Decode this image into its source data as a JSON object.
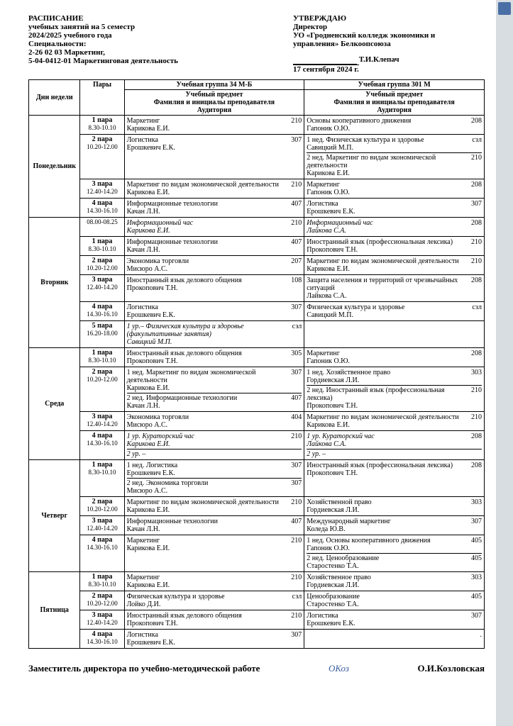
{
  "header": {
    "left": {
      "title": "РАСПИСАНИЕ",
      "line1": "учебных занятий на 5 семестр",
      "line2": "2024/2025 учебного года",
      "line3": "Специальности:",
      "line4": "2-26 02 03  Маркетинг,",
      "line5": "5-04-0412-01 Маркетинговая деятельность"
    },
    "right": {
      "approve": "УТВЕРЖДАЮ",
      "director": "Директор",
      "org1": "УО «Гродненский колледж экономики и",
      "org2": "управления» Белкоопсоюза",
      "name": "Т.И.Клепач",
      "date": "17 сентября 2024 г."
    }
  },
  "table_headers": {
    "day": "Дни недели",
    "pair": "Пары",
    "group1": "Учебная группа 34 М-Б",
    "group2": "Учебная группа 301 М",
    "sub": "Учебный предмет\nФамилия и инициалы преподавателя\nАудитория"
  },
  "days": [
    {
      "name": "Понедельник",
      "rows": [
        {
          "pair": "1 пара",
          "time": "8.30-10.10",
          "g1": [
            {
              "s": "Маркетинг",
              "t": "Карикова Е.И.",
              "r": "210"
            }
          ],
          "g2": [
            {
              "s": "Основы кооперативного движения",
              "t": "Гапоник О.Ю.",
              "r": "208"
            }
          ]
        },
        {
          "pair": "2 пара",
          "time": "10.20-12.00",
          "g1": [
            {
              "s": "Логистика",
              "t": "Ерошкевич Е.К.",
              "r": "307"
            }
          ],
          "g2": [
            {
              "s": "1 нед. Физическая культура и здоровье",
              "t": "Савицкий М.П.",
              "r": "сзл"
            },
            {
              "s": "2 нед. Маркетинг по видам экономической деятельности",
              "t": "Карикова Е.И.",
              "r": "210"
            }
          ]
        },
        {
          "pair": "3 пара",
          "time": "12.40-14.20",
          "g1": [
            {
              "s": "Маркетинг по видам экономической деятельности",
              "t": "Карикова Е.И.",
              "r": "210"
            }
          ],
          "g2": [
            {
              "s": "Маркетинг",
              "t": "Гапоник О.Ю.",
              "r": "208"
            }
          ]
        },
        {
          "pair": "4 пара",
          "time": "14.30-16.10",
          "g1": [
            {
              "s": "Информационные технологии",
              "t": "Качан Л.Н.",
              "r": "407"
            }
          ],
          "g2": [
            {
              "s": "Логистика",
              "t": "Ерошкевич Е.К.",
              "r": "307"
            }
          ]
        }
      ]
    },
    {
      "name": "Вторник",
      "rows": [
        {
          "pair": "",
          "time": "08.00-08.25",
          "g1": [
            {
              "s": "Информационный час",
              "t": "Карикова Е.И.",
              "r": "210",
              "it": true
            }
          ],
          "g2": [
            {
              "s": "Информационный час",
              "t": "Лайкова С.А.",
              "r": "208",
              "it": true
            }
          ]
        },
        {
          "pair": "1 пара",
          "time": "8.30-10.10",
          "g1": [
            {
              "s": "Информационные технологии",
              "t": "Качан Л.Н.",
              "r": "407"
            }
          ],
          "g2": [
            {
              "s": "Иностранный язык (профессиональная лексика)",
              "t": "Прокопович Т.Н.",
              "r": "210"
            }
          ]
        },
        {
          "pair": "2 пара",
          "time": "10.20-12.00",
          "g1": [
            {
              "s": "Экономика торговли",
              "t": "Мисюро А.С.",
              "r": "207"
            }
          ],
          "g2": [
            {
              "s": "Маркетинг по видам экономической деятельности",
              "t": "Карикова Е.И.",
              "r": "210"
            }
          ]
        },
        {
          "pair": "3 пара",
          "time": "12.40-14.20",
          "g1": [
            {
              "s": "Иностранный язык делового общения",
              "t": "Прокопович Т.Н.",
              "r": "108"
            }
          ],
          "g2": [
            {
              "s": "Защита населения и территорий от чрезвычайных ситуаций",
              "t": "Лайкова С.А.",
              "r": "208"
            }
          ]
        },
        {
          "pair": "4 пара",
          "time": "14.30-16.10",
          "g1": [
            {
              "s": "Логистика",
              "t": "Ерошкевич Е.К.",
              "r": "307"
            }
          ],
          "g2": [
            {
              "s": "Физическая культура и здоровье",
              "t": "Савицкий М.П.",
              "r": "сзл"
            }
          ]
        },
        {
          "pair": "5 пара",
          "time": "16.20-18.00",
          "g1": [
            {
              "s": "1 ур.–  Физическая культура и здоровье  (факультативные занятия)",
              "t": "Савицкий М.П.",
              "r": "сзл",
              "it": true
            }
          ],
          "g2": []
        }
      ]
    },
    {
      "name": "Среда",
      "rows": [
        {
          "pair": "1 пара",
          "time": "8.30-10.10",
          "g1": [
            {
              "s": "Иностранный язык делового общения",
              "t": "Прокопович Т.Н.",
              "r": "305"
            }
          ],
          "g2": [
            {
              "s": "Маркетинг",
              "t": "Гапоник О.Ю.",
              "r": "208"
            }
          ]
        },
        {
          "pair": "2 пара",
          "time": "10.20-12.00",
          "g1": [
            {
              "s": "1 нед. Маркетинг по видам экономической деятельности",
              "t": "Карикова Е.И.",
              "r": "307"
            },
            {
              "s": "2 нед. Информационные технологии",
              "t": "Качан Л.Н.",
              "r": "407"
            }
          ],
          "g2": [
            {
              "s": "1 нед. Хозяйственное право",
              "t": "Гордиевская Л.И.",
              "r": "303"
            },
            {
              "s": "2 нед. Иностранный язык (профессиональная лексика)",
              "t": "Прокопович Т.Н.",
              "r": "210"
            }
          ]
        },
        {
          "pair": "3 пара",
          "time": "12.40-14.20",
          "g1": [
            {
              "s": "Экономика торговли",
              "t": "Мисюро А.С.",
              "r": "404"
            }
          ],
          "g2": [
            {
              "s": "Маркетинг по видам экономической деятельности",
              "t": "Карикова Е.И.",
              "r": "210"
            }
          ]
        },
        {
          "pair": "4 пара",
          "time": "14.30-16.10",
          "g1": [
            {
              "s": "1 ур. Кураторский час",
              "t": "Карикова Е.И.",
              "r": "210",
              "it": true
            },
            {
              "s": "2 ур. –",
              "t": "",
              "r": "",
              "it": true
            }
          ],
          "g2": [
            {
              "s": "1 ур. Кураторский час",
              "t": "Лайкова С.А.",
              "r": "208",
              "it": true
            },
            {
              "s": "2 ур. –",
              "t": "",
              "r": "",
              "it": true
            }
          ]
        }
      ]
    },
    {
      "name": "Четверг",
      "rows": [
        {
          "pair": "1 пара",
          "time": "8.30-10.10",
          "g1": [
            {
              "s": "1 нед. Логистика",
              "t": "Ерошкевич Е.К.",
              "r": "307"
            },
            {
              "s": "2 нед. Экономика торговли",
              "t": "Мисюро А.С.",
              "r": "307"
            }
          ],
          "g2": [
            {
              "s": "Иностранный язык (профессиональная лексика)",
              "t": "Прокопович Т.Н.",
              "r": "208"
            }
          ]
        },
        {
          "pair": "2 пара",
          "time": "10.20-12.00",
          "g1": [
            {
              "s": "Маркетинг по видам экономической деятельности",
              "t": "Карикова Е.И.",
              "r": "210"
            }
          ],
          "g2": [
            {
              "s": "Хозяйственной право",
              "t": "Гордиевская Л.И.",
              "r": "303"
            }
          ]
        },
        {
          "pair": "3 пара",
          "time": "12.40-14.20",
          "g1": [
            {
              "s": "Информационные технологии",
              "t": "Качан Л.Н.",
              "r": "407"
            }
          ],
          "g2": [
            {
              "s": "Международный маркетинг",
              "t": "Коледа Ю.В.",
              "r": "307"
            }
          ]
        },
        {
          "pair": "4 пара",
          "time": "14.30-16.10",
          "g1": [
            {
              "s": "Маркетинг",
              "t": "Карикова Е.И.",
              "r": "210"
            }
          ],
          "g2": [
            {
              "s": "1 нед. Основы кооперативного движения",
              "t": "Гапоник О.Ю.",
              "r": "405"
            },
            {
              "s": "2 нед. Ценообразование",
              "t": "Старостенко Т.А.",
              "r": "405"
            }
          ]
        }
      ]
    },
    {
      "name": "Пятница",
      "rows": [
        {
          "pair": "1 пара",
          "time": "8.30-10.10",
          "g1": [
            {
              "s": "Маркетинг",
              "t": "Карикова Е.И.",
              "r": "210"
            }
          ],
          "g2": [
            {
              "s": "Хозяйственное право",
              "t": "Гордиевская Л.И.",
              "r": "303"
            }
          ]
        },
        {
          "pair": "2 пара",
          "time": "10.20-12.00",
          "g1": [
            {
              "s": "Физическая культура и здоровье",
              "t": "Лойко Д.И.",
              "r": "сзл"
            }
          ],
          "g2": [
            {
              "s": "Ценообразование",
              "t": "Старостенко Т.А.",
              "r": "405"
            }
          ]
        },
        {
          "pair": "3 пара",
          "time": "12.40-14.20",
          "g1": [
            {
              "s": "Иностранный язык делового общения",
              "t": "Прокопович Т.Н.",
              "r": "210"
            }
          ],
          "g2": [
            {
              "s": "Логистика",
              "t": "Ерошкевич Е.К.",
              "r": "307"
            }
          ]
        },
        {
          "pair": "4 пара",
          "time": "14.30-16.10",
          "g1": [
            {
              "s": "Логистика",
              "t": "Ерошкевич Е.К.",
              "r": "307"
            }
          ],
          "g2": [
            {
              "s": "",
              "t": "",
              "r": "."
            }
          ]
        }
      ]
    }
  ],
  "footer": {
    "role": "Заместитель директора по учебно-методической работе",
    "sig": "ОКоз",
    "name": "О.И.Козловская"
  }
}
